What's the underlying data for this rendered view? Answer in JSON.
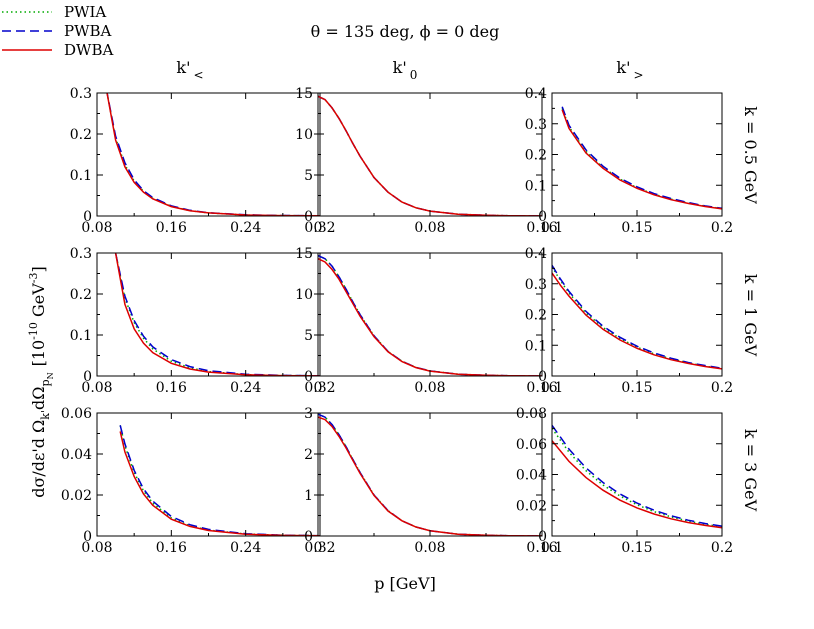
{
  "chart_data": {
    "type": "line",
    "title": "θ = 135 deg,  ϕ = 0 deg",
    "xlabel": "p [GeV]",
    "ylabel": {
      "main": "dσ/dε'd Ω",
      "sub1": "k'",
      "mid": "dΩ",
      "sub2": "p",
      "sub2sub": "N",
      "unit_open": "[10",
      "unit_exp1": "-10",
      "unit_mid": " GeV",
      "unit_exp2": "-3",
      "unit_close": "]"
    },
    "columns": [
      {
        "base": "k'",
        "sub": "<"
      },
      {
        "base": "k'",
        "sub": "0"
      },
      {
        "base": "k'",
        "sub": ">"
      }
    ],
    "rows": [
      "k = 0.5 GeV",
      "k = 1 GeV",
      "k = 3 GeV"
    ],
    "legend": [
      {
        "name": "PWIA",
        "color": "#00aa00",
        "style": "dotted"
      },
      {
        "name": "PWBA",
        "color": "#0000cc",
        "style": "dashed"
      },
      {
        "name": "DWBA",
        "color": "#dd0000",
        "style": "solid"
      }
    ],
    "panels": [
      {
        "xlim": [
          0.08,
          0.32
        ],
        "ylim": [
          0,
          0.3
        ],
        "xticks": [
          "0.08",
          "0.16",
          "0.24",
          "0.32"
        ],
        "xtickv": [
          0.08,
          0.16,
          0.24,
          0.32
        ],
        "yticks": [
          "0",
          "0.1",
          "0.2",
          "0.3"
        ],
        "ytickv": [
          0,
          0.1,
          0.2,
          0.3
        ],
        "x": [
          0.09,
          0.1,
          0.11,
          0.12,
          0.13,
          0.14,
          0.16,
          0.18,
          0.2,
          0.24,
          0.28,
          0.32
        ],
        "series": [
          {
            "name": "PWIA",
            "values": [
              0.31,
              0.19,
              0.125,
              0.085,
              0.06,
              0.043,
              0.024,
              0.013,
              0.0075,
              0.0025,
              0.001,
              0.0004
            ]
          },
          {
            "name": "PWBA",
            "values": [
              0.31,
              0.195,
              0.13,
              0.088,
              0.062,
              0.045,
              0.025,
              0.014,
              0.008,
              0.003,
              0.0012,
              0.0005
            ]
          },
          {
            "name": "DWBA",
            "values": [
              0.31,
              0.185,
              0.12,
              0.082,
              0.058,
              0.042,
              0.023,
              0.013,
              0.0075,
              0.0025,
              0.001,
              0.0004
            ]
          }
        ]
      },
      {
        "xlim": [
          0,
          0.16
        ],
        "ylim": [
          0,
          15
        ],
        "xticks": [
          "0",
          "0.08",
          "0.16"
        ],
        "xtickv": [
          0,
          0.08,
          0.16
        ],
        "yticks": [
          "0",
          "5",
          "10",
          "15"
        ],
        "ytickv": [
          0,
          5,
          10,
          15
        ],
        "x": [
          0,
          0.005,
          0.01,
          0.015,
          0.02,
          0.025,
          0.03,
          0.04,
          0.05,
          0.06,
          0.07,
          0.08,
          0.1,
          0.12,
          0.14,
          0.16
        ],
        "series": [
          {
            "name": "PWIA",
            "values": [
              14.6,
              14.2,
              13.2,
              11.9,
              10.4,
              8.8,
              7.3,
              4.7,
              2.9,
              1.7,
              1.0,
              0.6,
              0.22,
              0.08,
              0.03,
              0.01
            ]
          },
          {
            "name": "PWBA",
            "values": [
              14.6,
              14.2,
              13.2,
              11.9,
              10.4,
              8.8,
              7.3,
              4.7,
              2.9,
              1.7,
              1.0,
              0.6,
              0.22,
              0.08,
              0.03,
              0.01
            ]
          },
          {
            "name": "DWBA",
            "values": [
              14.6,
              14.2,
              13.2,
              11.9,
              10.4,
              8.8,
              7.3,
              4.7,
              2.9,
              1.7,
              1.0,
              0.6,
              0.22,
              0.08,
              0.03,
              0.01
            ]
          }
        ]
      },
      {
        "xlim": [
          0.1,
          0.2
        ],
        "ylim": [
          0,
          0.4
        ],
        "xticks": [
          "0.1",
          "0.15",
          "0.2"
        ],
        "xtickv": [
          0.1,
          0.15,
          0.2
        ],
        "yticks": [
          "0",
          "0.1",
          "0.2",
          "0.3",
          "0.4"
        ],
        "ytickv": [
          0,
          0.1,
          0.2,
          0.3,
          0.4
        ],
        "x": [
          0.106,
          0.11,
          0.12,
          0.13,
          0.14,
          0.15,
          0.16,
          0.17,
          0.18,
          0.19,
          0.2
        ],
        "series": [
          {
            "name": "PWIA",
            "values": [
              0.35,
              0.29,
              0.21,
              0.158,
              0.12,
              0.092,
              0.071,
              0.055,
              0.042,
              0.032,
              0.024
            ]
          },
          {
            "name": "PWBA",
            "values": [
              0.355,
              0.295,
              0.215,
              0.162,
              0.123,
              0.095,
              0.073,
              0.057,
              0.044,
              0.033,
              0.025
            ]
          },
          {
            "name": "DWBA",
            "values": [
              0.345,
              0.285,
              0.205,
              0.155,
              0.117,
              0.09,
              0.069,
              0.053,
              0.041,
              0.031,
              0.023
            ]
          }
        ]
      },
      {
        "xlim": [
          0.08,
          0.32
        ],
        "ylim": [
          0,
          0.3
        ],
        "xticks": [
          "0.08",
          "0.16",
          "0.24",
          "0.32"
        ],
        "xtickv": [
          0.08,
          0.16,
          0.24,
          0.32
        ],
        "yticks": [
          "0",
          "0.1",
          "0.2",
          "0.3"
        ],
        "ytickv": [
          0,
          0.1,
          0.2,
          0.3
        ],
        "x": [
          0.1,
          0.11,
          0.12,
          0.13,
          0.14,
          0.16,
          0.18,
          0.2,
          0.24,
          0.28,
          0.32
        ],
        "series": [
          {
            "name": "PWIA",
            "values": [
              0.3,
              0.19,
              0.13,
              0.092,
              0.066,
              0.036,
              0.02,
              0.011,
              0.0035,
              0.0012,
              0.0004
            ]
          },
          {
            "name": "PWBA",
            "values": [
              0.3,
              0.195,
              0.135,
              0.097,
              0.071,
              0.04,
              0.023,
              0.013,
              0.0045,
              0.0015,
              0.0005
            ]
          },
          {
            "name": "DWBA",
            "values": [
              0.3,
              0.175,
              0.115,
              0.08,
              0.057,
              0.031,
              0.017,
              0.0095,
              0.003,
              0.001,
              0.0003
            ]
          }
        ]
      },
      {
        "xlim": [
          0,
          0.16
        ],
        "ylim": [
          0,
          15
        ],
        "xticks": [
          "0",
          "0.08",
          "0.16"
        ],
        "xtickv": [
          0,
          0.08,
          0.16
        ],
        "yticks": [
          "0",
          "5",
          "10",
          "15"
        ],
        "ytickv": [
          0,
          5,
          10,
          15
        ],
        "x": [
          0,
          0.005,
          0.01,
          0.015,
          0.02,
          0.025,
          0.03,
          0.04,
          0.05,
          0.06,
          0.07,
          0.08,
          0.1,
          0.12,
          0.14,
          0.16
        ],
        "series": [
          {
            "name": "PWIA",
            "values": [
              14.7,
              14.3,
              13.4,
              12.1,
              10.6,
              9.0,
              7.5,
              4.9,
              3.0,
              1.8,
              1.05,
              0.62,
              0.22,
              0.08,
              0.03,
              0.01
            ]
          },
          {
            "name": "PWBA",
            "values": [
              14.7,
              14.3,
              13.4,
              12.1,
              10.6,
              9.0,
              7.5,
              4.9,
              3.0,
              1.8,
              1.05,
              0.62,
              0.22,
              0.08,
              0.03,
              0.01
            ]
          },
          {
            "name": "DWBA",
            "values": [
              14.3,
              13.9,
              13.0,
              11.8,
              10.3,
              8.8,
              7.3,
              4.8,
              2.95,
              1.75,
              1.02,
              0.6,
              0.21,
              0.08,
              0.03,
              0.01
            ]
          }
        ]
      },
      {
        "xlim": [
          0.1,
          0.2
        ],
        "ylim": [
          0,
          0.4
        ],
        "xticks": [
          "0.1",
          "0.15",
          "0.2"
        ],
        "xtickv": [
          0.1,
          0.15,
          0.2
        ],
        "yticks": [
          "0",
          "0.1",
          "0.2",
          "0.3",
          "0.4"
        ],
        "ytickv": [
          0,
          0.1,
          0.2,
          0.3,
          0.4
        ],
        "x": [
          0.1,
          0.105,
          0.11,
          0.12,
          0.13,
          0.14,
          0.15,
          0.16,
          0.17,
          0.18,
          0.19,
          0.2
        ],
        "series": [
          {
            "name": "PWIA",
            "values": [
              0.355,
              0.31,
              0.27,
              0.205,
              0.158,
              0.122,
              0.094,
              0.072,
              0.056,
              0.043,
              0.032,
              0.024
            ]
          },
          {
            "name": "PWBA",
            "values": [
              0.36,
              0.315,
              0.275,
              0.21,
              0.162,
              0.126,
              0.097,
              0.075,
              0.058,
              0.044,
              0.034,
              0.025
            ]
          },
          {
            "name": "DWBA",
            "values": [
              0.335,
              0.295,
              0.26,
              0.198,
              0.152,
              0.117,
              0.09,
              0.069,
              0.053,
              0.041,
              0.031,
              0.023
            ]
          }
        ]
      },
      {
        "xlim": [
          0.08,
          0.32
        ],
        "ylim": [
          0,
          0.06
        ],
        "xticks": [
          "0.08",
          "0.16",
          "0.24",
          "0.32"
        ],
        "xtickv": [
          0.08,
          0.16,
          0.24,
          0.32
        ],
        "yticks": [
          "0",
          "0.02",
          "0.04",
          "0.06"
        ],
        "ytickv": [
          0,
          0.02,
          0.04,
          0.06
        ],
        "x": [
          0.105,
          0.11,
          0.12,
          0.13,
          0.14,
          0.16,
          0.18,
          0.2,
          0.24,
          0.28,
          0.32
        ],
        "series": [
          {
            "name": "PWIA",
            "values": [
              0.054,
              0.044,
              0.031,
              0.022,
              0.016,
              0.0088,
              0.005,
              0.0029,
              0.001,
              0.0004,
              0.00015
            ]
          },
          {
            "name": "PWBA",
            "values": [
              0.054,
              0.045,
              0.032,
              0.023,
              0.017,
              0.0095,
              0.0055,
              0.0032,
              0.0011,
              0.0004,
              0.00015
            ]
          },
          {
            "name": "DWBA",
            "values": [
              0.051,
              0.041,
              0.029,
              0.0205,
              0.015,
              0.0082,
              0.0047,
              0.0027,
              0.0009,
              0.0003,
              0.0001
            ]
          }
        ]
      },
      {
        "xlim": [
          0,
          0.16
        ],
        "ylim": [
          0,
          3
        ],
        "xticks": [
          "0",
          "0.08",
          "0.16"
        ],
        "xtickv": [
          0,
          0.08,
          0.16
        ],
        "yticks": [
          "0",
          "1",
          "2",
          "3"
        ],
        "ytickv": [
          0,
          1,
          2,
          3
        ],
        "x": [
          0,
          0.005,
          0.01,
          0.015,
          0.02,
          0.025,
          0.03,
          0.04,
          0.05,
          0.06,
          0.07,
          0.08,
          0.1,
          0.12,
          0.14,
          0.16
        ],
        "series": [
          {
            "name": "PWIA",
            "values": [
              2.97,
              2.9,
              2.72,
              2.47,
              2.18,
              1.86,
              1.55,
              1.0,
              0.62,
              0.37,
              0.22,
              0.13,
              0.045,
              0.016,
              0.006,
              0.002
            ]
          },
          {
            "name": "PWBA",
            "values": [
              2.97,
              2.9,
              2.72,
              2.47,
              2.18,
              1.86,
              1.55,
              1.0,
              0.62,
              0.37,
              0.22,
              0.13,
              0.045,
              0.016,
              0.006,
              0.002
            ]
          },
          {
            "name": "DWBA",
            "values": [
              2.9,
              2.84,
              2.67,
              2.43,
              2.15,
              1.84,
              1.53,
              0.99,
              0.61,
              0.37,
              0.22,
              0.13,
              0.045,
              0.016,
              0.006,
              0.002
            ]
          }
        ]
      },
      {
        "xlim": [
          0.1,
          0.2
        ],
        "ylim": [
          0,
          0.08
        ],
        "xticks": [
          "0.1",
          "0.15",
          "0.2"
        ],
        "xtickv": [
          0.1,
          0.15,
          0.2
        ],
        "yticks": [
          "0",
          "0.02",
          "0.04",
          "0.06",
          "0.08"
        ],
        "ytickv": [
          0,
          0.02,
          0.04,
          0.06,
          0.08
        ],
        "x": [
          0.1,
          0.11,
          0.12,
          0.13,
          0.14,
          0.15,
          0.16,
          0.17,
          0.18,
          0.19,
          0.2
        ],
        "series": [
          {
            "name": "PWIA",
            "values": [
              0.07,
              0.0545,
              0.0425,
              0.0332,
              0.026,
              0.0203,
              0.0159,
              0.0124,
              0.0097,
              0.0076,
              0.006
            ]
          },
          {
            "name": "PWBA",
            "values": [
              0.072,
              0.0565,
              0.0443,
              0.0348,
              0.0273,
              0.0214,
              0.0168,
              0.0132,
              0.0103,
              0.0081,
              0.0064
            ]
          },
          {
            "name": "DWBA",
            "values": [
              0.062,
              0.0485,
              0.038,
              0.0298,
              0.0233,
              0.0183,
              0.0143,
              0.0112,
              0.0088,
              0.0069,
              0.0054
            ]
          }
        ]
      }
    ]
  }
}
